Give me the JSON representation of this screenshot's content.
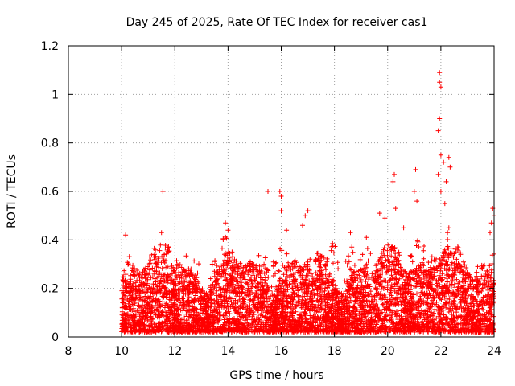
{
  "chart_data": {
    "type": "scatter",
    "title": "Day 245 of 2025, Rate Of TEC Index for receiver cas1",
    "xlabel": "GPS time / hours",
    "ylabel": "ROTI / TECUs",
    "xlim": [
      8,
      24
    ],
    "ylim": [
      0,
      1.2
    ],
    "x_ticks": [
      8,
      10,
      12,
      14,
      16,
      18,
      20,
      22,
      24
    ],
    "y_ticks": [
      0,
      0.2,
      0.4,
      0.6,
      0.8,
      1,
      1.2
    ],
    "x_tick_labels": [
      "8",
      "10",
      "12",
      "14",
      "16",
      "18",
      "20",
      "22",
      "24"
    ],
    "y_tick_labels": [
      "0",
      "0.2",
      "0.4",
      "0.6",
      "0.8",
      "1",
      "1.2"
    ],
    "grid": true,
    "marker": "+",
    "series": [
      {
        "name": "cas1",
        "color": "#ff0000",
        "x_range": [
          10.0,
          24.0
        ],
        "baseline_band": [
          0.0,
          0.25
        ],
        "outliers": [
          [
            10.15,
            0.42
          ],
          [
            11.55,
            0.6
          ],
          [
            11.5,
            0.43
          ],
          [
            13.9,
            0.47
          ],
          [
            14.0,
            0.44
          ],
          [
            15.5,
            0.6
          ],
          [
            15.95,
            0.6
          ],
          [
            16.0,
            0.58
          ],
          [
            16.0,
            0.52
          ],
          [
            16.2,
            0.44
          ],
          [
            16.9,
            0.5
          ],
          [
            17.0,
            0.52
          ],
          [
            16.8,
            0.46
          ],
          [
            18.6,
            0.43
          ],
          [
            19.2,
            0.41
          ],
          [
            19.7,
            0.51
          ],
          [
            19.9,
            0.49
          ],
          [
            20.25,
            0.67
          ],
          [
            20.2,
            0.64
          ],
          [
            20.3,
            0.53
          ],
          [
            20.6,
            0.45
          ],
          [
            21.05,
            0.69
          ],
          [
            21.0,
            0.6
          ],
          [
            21.1,
            0.56
          ],
          [
            21.95,
            1.09
          ],
          [
            21.95,
            1.05
          ],
          [
            22.0,
            1.03
          ],
          [
            21.95,
            0.9
          ],
          [
            21.9,
            0.85
          ],
          [
            22.0,
            0.75
          ],
          [
            21.9,
            0.67
          ],
          [
            22.1,
            0.72
          ],
          [
            22.3,
            0.74
          ],
          [
            22.35,
            0.7
          ],
          [
            22.2,
            0.64
          ],
          [
            22.0,
            0.6
          ],
          [
            22.15,
            0.55
          ],
          [
            22.3,
            0.45
          ],
          [
            22.25,
            0.43
          ],
          [
            23.85,
            0.43
          ],
          [
            23.95,
            0.53
          ],
          [
            24.0,
            0.5
          ],
          [
            23.9,
            0.47
          ]
        ]
      }
    ]
  }
}
